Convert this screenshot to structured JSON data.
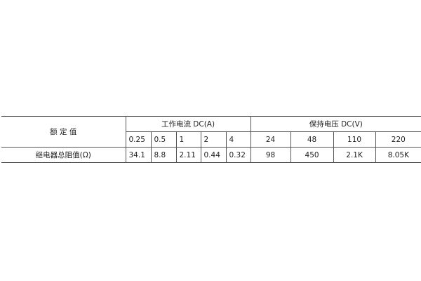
{
  "table": {
    "rated_label": "额 定 值",
    "current_group": "工作电流 DC(A)",
    "voltage_group": "保持电压 DC(V)",
    "current_values": [
      "0.25",
      "0.5",
      "1",
      "2",
      "4"
    ],
    "voltage_values": [
      "24",
      "48",
      "110",
      "220"
    ],
    "row_label": "继电器总阻值(Ω)",
    "current_resistances": [
      "34.1",
      "8.8",
      "2.11",
      "0.44",
      "0.32"
    ],
    "voltage_resistances": [
      "98",
      "450",
      "2.1K",
      "8.05K"
    ]
  }
}
